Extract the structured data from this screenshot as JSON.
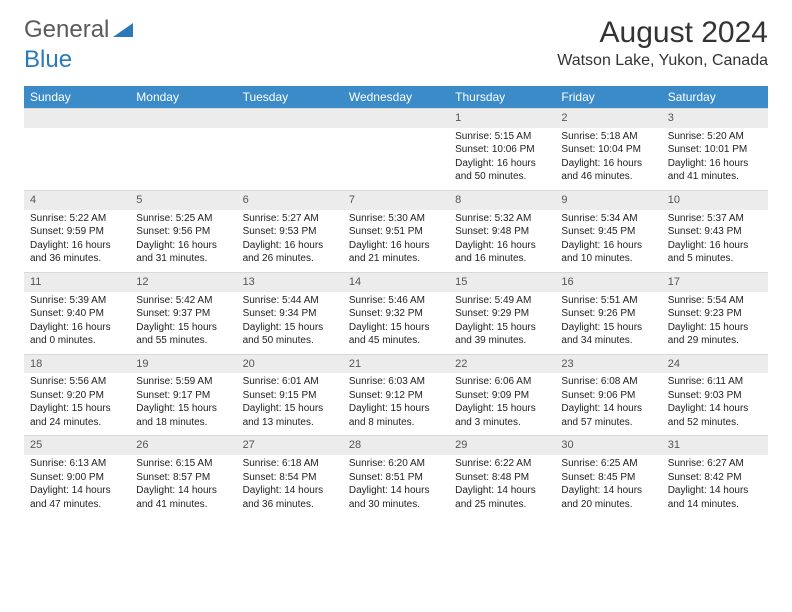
{
  "logo": {
    "text1": "General",
    "text2": "Blue",
    "color1": "#6b6b6b",
    "color2": "#2a7ab8"
  },
  "title": "August 2024",
  "location": "Watson Lake, Yukon, Canada",
  "headers": [
    "Sunday",
    "Monday",
    "Tuesday",
    "Wednesday",
    "Thursday",
    "Friday",
    "Saturday"
  ],
  "colors": {
    "header_bg": "#3b8bc9",
    "daynum_bg": "#ececec"
  },
  "weeks": [
    [
      {
        "n": "",
        "sr": "",
        "ss": "",
        "dl": ""
      },
      {
        "n": "",
        "sr": "",
        "ss": "",
        "dl": ""
      },
      {
        "n": "",
        "sr": "",
        "ss": "",
        "dl": ""
      },
      {
        "n": "",
        "sr": "",
        "ss": "",
        "dl": ""
      },
      {
        "n": "1",
        "sr": "Sunrise: 5:15 AM",
        "ss": "Sunset: 10:06 PM",
        "dl": "Daylight: 16 hours and 50 minutes."
      },
      {
        "n": "2",
        "sr": "Sunrise: 5:18 AM",
        "ss": "Sunset: 10:04 PM",
        "dl": "Daylight: 16 hours and 46 minutes."
      },
      {
        "n": "3",
        "sr": "Sunrise: 5:20 AM",
        "ss": "Sunset: 10:01 PM",
        "dl": "Daylight: 16 hours and 41 minutes."
      }
    ],
    [
      {
        "n": "4",
        "sr": "Sunrise: 5:22 AM",
        "ss": "Sunset: 9:59 PM",
        "dl": "Daylight: 16 hours and 36 minutes."
      },
      {
        "n": "5",
        "sr": "Sunrise: 5:25 AM",
        "ss": "Sunset: 9:56 PM",
        "dl": "Daylight: 16 hours and 31 minutes."
      },
      {
        "n": "6",
        "sr": "Sunrise: 5:27 AM",
        "ss": "Sunset: 9:53 PM",
        "dl": "Daylight: 16 hours and 26 minutes."
      },
      {
        "n": "7",
        "sr": "Sunrise: 5:30 AM",
        "ss": "Sunset: 9:51 PM",
        "dl": "Daylight: 16 hours and 21 minutes."
      },
      {
        "n": "8",
        "sr": "Sunrise: 5:32 AM",
        "ss": "Sunset: 9:48 PM",
        "dl": "Daylight: 16 hours and 16 minutes."
      },
      {
        "n": "9",
        "sr": "Sunrise: 5:34 AM",
        "ss": "Sunset: 9:45 PM",
        "dl": "Daylight: 16 hours and 10 minutes."
      },
      {
        "n": "10",
        "sr": "Sunrise: 5:37 AM",
        "ss": "Sunset: 9:43 PM",
        "dl": "Daylight: 16 hours and 5 minutes."
      }
    ],
    [
      {
        "n": "11",
        "sr": "Sunrise: 5:39 AM",
        "ss": "Sunset: 9:40 PM",
        "dl": "Daylight: 16 hours and 0 minutes."
      },
      {
        "n": "12",
        "sr": "Sunrise: 5:42 AM",
        "ss": "Sunset: 9:37 PM",
        "dl": "Daylight: 15 hours and 55 minutes."
      },
      {
        "n": "13",
        "sr": "Sunrise: 5:44 AM",
        "ss": "Sunset: 9:34 PM",
        "dl": "Daylight: 15 hours and 50 minutes."
      },
      {
        "n": "14",
        "sr": "Sunrise: 5:46 AM",
        "ss": "Sunset: 9:32 PM",
        "dl": "Daylight: 15 hours and 45 minutes."
      },
      {
        "n": "15",
        "sr": "Sunrise: 5:49 AM",
        "ss": "Sunset: 9:29 PM",
        "dl": "Daylight: 15 hours and 39 minutes."
      },
      {
        "n": "16",
        "sr": "Sunrise: 5:51 AM",
        "ss": "Sunset: 9:26 PM",
        "dl": "Daylight: 15 hours and 34 minutes."
      },
      {
        "n": "17",
        "sr": "Sunrise: 5:54 AM",
        "ss": "Sunset: 9:23 PM",
        "dl": "Daylight: 15 hours and 29 minutes."
      }
    ],
    [
      {
        "n": "18",
        "sr": "Sunrise: 5:56 AM",
        "ss": "Sunset: 9:20 PM",
        "dl": "Daylight: 15 hours and 24 minutes."
      },
      {
        "n": "19",
        "sr": "Sunrise: 5:59 AM",
        "ss": "Sunset: 9:17 PM",
        "dl": "Daylight: 15 hours and 18 minutes."
      },
      {
        "n": "20",
        "sr": "Sunrise: 6:01 AM",
        "ss": "Sunset: 9:15 PM",
        "dl": "Daylight: 15 hours and 13 minutes."
      },
      {
        "n": "21",
        "sr": "Sunrise: 6:03 AM",
        "ss": "Sunset: 9:12 PM",
        "dl": "Daylight: 15 hours and 8 minutes."
      },
      {
        "n": "22",
        "sr": "Sunrise: 6:06 AM",
        "ss": "Sunset: 9:09 PM",
        "dl": "Daylight: 15 hours and 3 minutes."
      },
      {
        "n": "23",
        "sr": "Sunrise: 6:08 AM",
        "ss": "Sunset: 9:06 PM",
        "dl": "Daylight: 14 hours and 57 minutes."
      },
      {
        "n": "24",
        "sr": "Sunrise: 6:11 AM",
        "ss": "Sunset: 9:03 PM",
        "dl": "Daylight: 14 hours and 52 minutes."
      }
    ],
    [
      {
        "n": "25",
        "sr": "Sunrise: 6:13 AM",
        "ss": "Sunset: 9:00 PM",
        "dl": "Daylight: 14 hours and 47 minutes."
      },
      {
        "n": "26",
        "sr": "Sunrise: 6:15 AM",
        "ss": "Sunset: 8:57 PM",
        "dl": "Daylight: 14 hours and 41 minutes."
      },
      {
        "n": "27",
        "sr": "Sunrise: 6:18 AM",
        "ss": "Sunset: 8:54 PM",
        "dl": "Daylight: 14 hours and 36 minutes."
      },
      {
        "n": "28",
        "sr": "Sunrise: 6:20 AM",
        "ss": "Sunset: 8:51 PM",
        "dl": "Daylight: 14 hours and 30 minutes."
      },
      {
        "n": "29",
        "sr": "Sunrise: 6:22 AM",
        "ss": "Sunset: 8:48 PM",
        "dl": "Daylight: 14 hours and 25 minutes."
      },
      {
        "n": "30",
        "sr": "Sunrise: 6:25 AM",
        "ss": "Sunset: 8:45 PM",
        "dl": "Daylight: 14 hours and 20 minutes."
      },
      {
        "n": "31",
        "sr": "Sunrise: 6:27 AM",
        "ss": "Sunset: 8:42 PM",
        "dl": "Daylight: 14 hours and 14 minutes."
      }
    ]
  ]
}
